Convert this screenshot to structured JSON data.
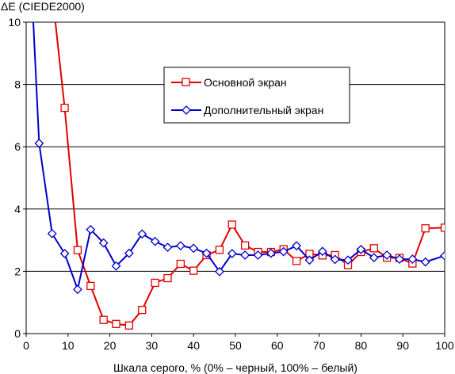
{
  "chart_data": {
    "type": "line",
    "ylabel": "ΔE (CIEDE2000)",
    "xlabel": "Шкала серого, % (0% – черный, 100% – белый)",
    "xlim": [
      0,
      100
    ],
    "ylim": [
      0,
      10
    ],
    "xticks": [
      0,
      10,
      20,
      30,
      40,
      50,
      60,
      70,
      80,
      90,
      100
    ],
    "yticks": [
      0,
      2,
      4,
      6,
      8,
      10
    ],
    "grid": "horizontal",
    "legend_position": "inside-top-center",
    "series": [
      {
        "name": "Основной экран",
        "color": "#e00000",
        "marker": "square",
        "points": [
          [
            6.5,
            10.6
          ],
          [
            9.2,
            7.25
          ],
          [
            12.3,
            2.68
          ],
          [
            15.4,
            1.53
          ],
          [
            18.5,
            0.44
          ],
          [
            21.5,
            0.31
          ],
          [
            24.6,
            0.26
          ],
          [
            27.7,
            0.76
          ],
          [
            30.8,
            1.63
          ],
          [
            33.8,
            1.78
          ],
          [
            36.9,
            2.24
          ],
          [
            40.0,
            2.02
          ],
          [
            43.1,
            2.52
          ],
          [
            46.2,
            2.69
          ],
          [
            49.2,
            3.5
          ],
          [
            52.3,
            2.83
          ],
          [
            55.4,
            2.62
          ],
          [
            58.5,
            2.62
          ],
          [
            61.5,
            2.71
          ],
          [
            64.6,
            2.33
          ],
          [
            67.7,
            2.56
          ],
          [
            70.8,
            2.51
          ],
          [
            73.8,
            2.52
          ],
          [
            76.9,
            2.2
          ],
          [
            80.0,
            2.62
          ],
          [
            83.1,
            2.74
          ],
          [
            86.2,
            2.44
          ],
          [
            89.2,
            2.43
          ],
          [
            92.3,
            2.25
          ],
          [
            95.4,
            3.38
          ],
          [
            100.0,
            3.4
          ]
        ]
      },
      {
        "name": "Дополнительный экран",
        "color": "#0000cc",
        "marker": "diamond",
        "points": [
          [
            1.6,
            10.3
          ],
          [
            3.1,
            6.11
          ],
          [
            6.2,
            3.21
          ],
          [
            9.2,
            2.57
          ],
          [
            12.3,
            1.42
          ],
          [
            15.4,
            3.34
          ],
          [
            18.5,
            2.91
          ],
          [
            21.5,
            2.17
          ],
          [
            24.6,
            2.58
          ],
          [
            27.7,
            3.2
          ],
          [
            30.8,
            2.96
          ],
          [
            33.8,
            2.77
          ],
          [
            36.9,
            2.82
          ],
          [
            40.0,
            2.74
          ],
          [
            43.1,
            2.58
          ],
          [
            46.2,
            1.99
          ],
          [
            49.2,
            2.57
          ],
          [
            52.3,
            2.52
          ],
          [
            55.4,
            2.52
          ],
          [
            58.5,
            2.58
          ],
          [
            61.5,
            2.63
          ],
          [
            64.6,
            2.82
          ],
          [
            67.7,
            2.36
          ],
          [
            70.8,
            2.64
          ],
          [
            73.8,
            2.38
          ],
          [
            76.9,
            2.36
          ],
          [
            80.0,
            2.7
          ],
          [
            83.1,
            2.44
          ],
          [
            86.2,
            2.52
          ],
          [
            89.2,
            2.39
          ],
          [
            92.3,
            2.39
          ],
          [
            95.4,
            2.3
          ],
          [
            100.0,
            2.5
          ]
        ]
      }
    ]
  }
}
